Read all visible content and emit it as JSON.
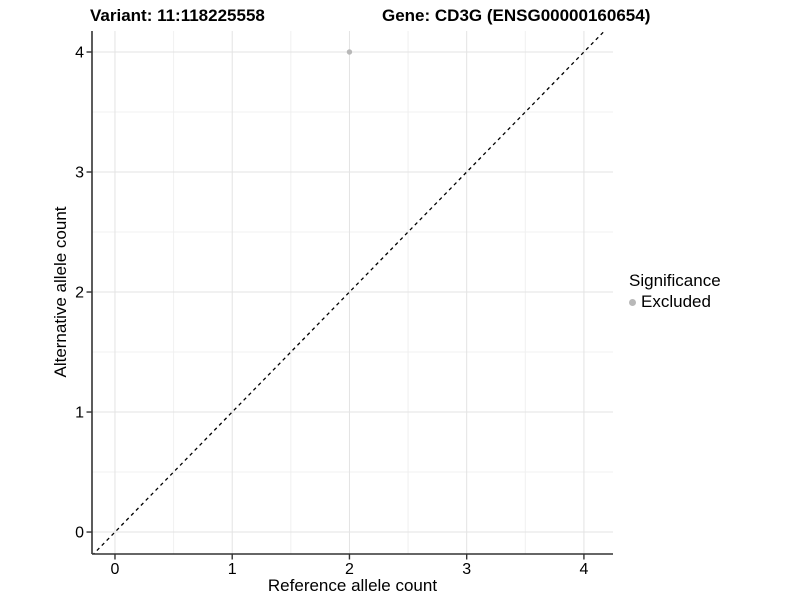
{
  "header": {
    "variant_title": "Variant: 11:118225558",
    "gene_title": "Gene: CD3G (ENSG00000160654)"
  },
  "chart_data": {
    "type": "scatter",
    "title_left": "Variant: 11:118225558",
    "title_right": "Gene: CD3G (ENSG00000160654)",
    "xlabel": "Reference allele count",
    "ylabel": "Alternative allele count",
    "xticks": [
      "0",
      "1",
      "2",
      "3",
      "4"
    ],
    "yticks": [
      "0",
      "1",
      "2",
      "3",
      "4"
    ],
    "xtick_values": [
      0,
      1,
      2,
      3,
      4
    ],
    "ytick_values": [
      0,
      1,
      2,
      3,
      4
    ],
    "xlim": [
      -0.196,
      4.248
    ],
    "ylim": [
      -0.183,
      4.175
    ],
    "minor_grid_step": 0.5,
    "grid": "major+minor",
    "legend_position": "right",
    "series": [
      {
        "name": "Excluded",
        "color": "#b8b8b8",
        "marker": "circle",
        "points": [
          {
            "x": 2,
            "y": 4
          }
        ]
      }
    ],
    "reference_line": {
      "type": "identity",
      "slope": 1,
      "intercept": 0,
      "stroke": "#000000",
      "dash": "3.5 3.5"
    },
    "legend": {
      "title": "Significance",
      "entries": [
        {
          "label": "Excluded",
          "color": "#b8b8b8",
          "marker": "circle"
        }
      ]
    },
    "colors": {
      "background": "#ffffff",
      "grid_major": "#e3e3e3",
      "grid_minor": "#f0f0f0",
      "axis_line": "#333333",
      "tick_mark": "#333333",
      "text": "#000000"
    }
  }
}
